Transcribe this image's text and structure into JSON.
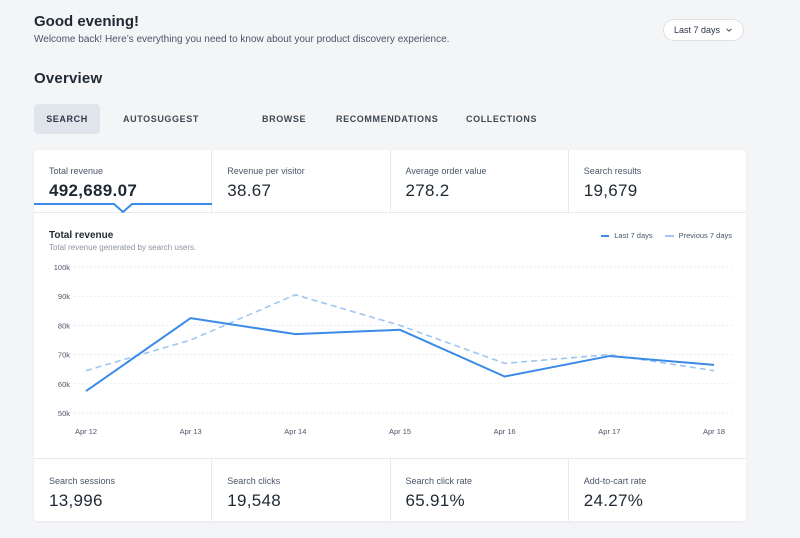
{
  "header": {
    "greeting": "Good evening!",
    "subtitle": "Welcome back! Here’s everything you need to know about your product discovery experience.",
    "range_label": "Last 7 days"
  },
  "overview_title": "Overview",
  "tabs": [
    {
      "label": "SEARCH",
      "active": true
    },
    {
      "label": "AUTOSUGGEST",
      "active": false
    },
    {
      "label": "BROWSE",
      "active": false
    },
    {
      "label": "RECOMMENDATIONS",
      "active": false
    },
    {
      "label": "COLLECTIONS",
      "active": false
    }
  ],
  "kpis_top": [
    {
      "label": "Total revenue",
      "value": "492,689.07",
      "active": true
    },
    {
      "label": "Revenue per visitor",
      "value": "38.67"
    },
    {
      "label": "Average order value",
      "value": "278.2"
    },
    {
      "label": "Search results",
      "value": "19,679"
    }
  ],
  "chart": {
    "title": "Total revenue",
    "subtitle": "Total revenue generated by search users.",
    "legend": {
      "current": "Last 7 days",
      "previous": "Previous 7 days"
    }
  },
  "chart_data": {
    "type": "line",
    "x": [
      "Apr 12",
      "Apr 13",
      "Apr 14",
      "Apr 15",
      "Apr 16",
      "Apr 17",
      "Apr 18"
    ],
    "y_ticks": [
      "100k",
      "90k",
      "80k",
      "70k",
      "60k",
      "50k"
    ],
    "ylim": [
      50000,
      100000
    ],
    "grid": true,
    "legend_position": "top-right",
    "series": [
      {
        "name": "Last 7 days",
        "style": "solid",
        "color": "#3b8ae8",
        "values": [
          57500,
          82500,
          77000,
          78500,
          62500,
          69500,
          66500
        ]
      },
      {
        "name": "Previous 7 days",
        "style": "dashed",
        "color": "#9fc6f2",
        "values": [
          64500,
          75000,
          90500,
          80000,
          67000,
          70000,
          64500
        ]
      }
    ]
  },
  "kpis_bottom": [
    {
      "label": "Search sessions",
      "value": "13,996"
    },
    {
      "label": "Search clicks",
      "value": "19,548"
    },
    {
      "label": "Search click rate",
      "value": "65.91%"
    },
    {
      "label": "Add-to-cart rate",
      "value": "24.27%"
    }
  ],
  "icons": {
    "range_chevron": "chevron-down-icon"
  },
  "colors": {
    "accent": "#3b8ae8",
    "accent_light": "#9fc6f2",
    "tab_active_bg": "#dfe5eb"
  }
}
